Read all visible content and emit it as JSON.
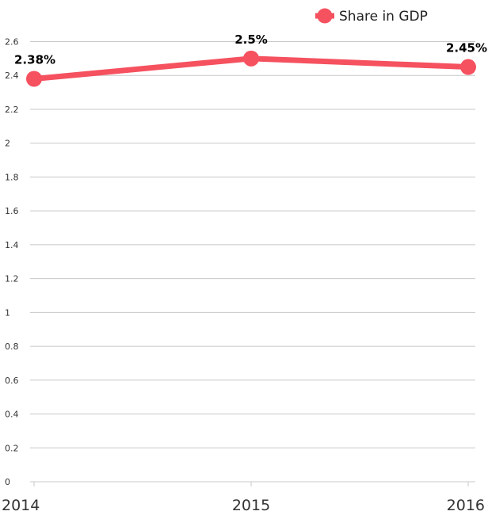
{
  "chart_data": {
    "type": "line",
    "categories": [
      "2014",
      "2015",
      "2016"
    ],
    "series": [
      {
        "name": "Share in GDP",
        "values": [
          2.38,
          2.5,
          2.45
        ],
        "labels": [
          "2.38%",
          "2.5%",
          "2.45%"
        ],
        "color": "#f5515f"
      }
    ],
    "y_ticks": [
      "0",
      "0.2",
      "0.4",
      "0.6",
      "0.8",
      "1",
      "1.2",
      "1.4",
      "1.6",
      "1.8",
      "2",
      "2.2",
      "2.4",
      "2.6"
    ],
    "ylim": [
      0,
      2.6
    ],
    "grid": true,
    "legend": "top-right"
  }
}
